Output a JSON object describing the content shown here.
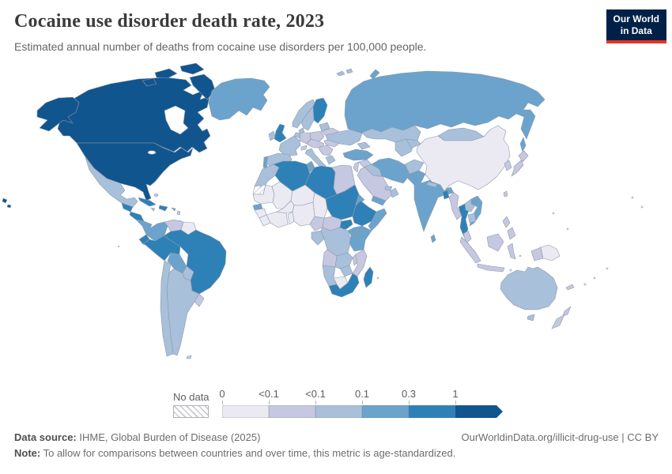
{
  "header": {
    "title": "Cocaine use disorder death rate, 2023",
    "subtitle": "Estimated annual number of deaths from cocaine use disorders per 100,000 people."
  },
  "logo": {
    "line1": "Our World",
    "line2": "in Data",
    "bg_color": "#002147",
    "accent_color": "#e63323"
  },
  "legend": {
    "no_data_label": "No data",
    "tick_labels": [
      "0",
      "<0.1",
      "<0.1",
      "0.1",
      "0.3",
      "1"
    ]
  },
  "map": {
    "ocean_color": "#ffffff",
    "border_color": "#8e99aa",
    "bin_colors": [
      "#ebeaf3",
      "#c6c7e1",
      "#a8c0da",
      "#6ba3cc",
      "#2e81b6",
      "#11558f"
    ],
    "no_data_pattern_line": "#bcbcca"
  },
  "footer": {
    "source_label": "Data source:",
    "source_text": " IHME, Global Burden of Disease (2025)",
    "note_label": "Note:",
    "note_text": " To allow for comparisons between countries and over time, this metric is age-standardized.",
    "attribution": "OurWorldinData.org/illicit-drug-use | CC BY"
  },
  "chart_data": {
    "type": "choropleth-map",
    "title": "Cocaine use disorder death rate, 2023",
    "unit": "deaths per 100,000 people (age-standardized)",
    "year": 2023,
    "legend_tick_labels": [
      "0",
      "<0.1",
      "<0.1",
      "0.1",
      "0.3",
      "1"
    ],
    "bin_colors": [
      "#ebeaf3",
      "#c6c7e1",
      "#a8c0da",
      "#6ba3cc",
      "#2e81b6",
      "#11558f"
    ],
    "no_data_countries": [
      "Western Sahara"
    ],
    "countries": {
      "United States": 5,
      "Canada": 5,
      "Hawaii": 5,
      "Greenland": 3,
      "Iceland": 4,
      "Mexico": 2,
      "Guatemala": 4,
      "Honduras-Nicaragua": 4,
      "Costa Rica-Panama": 3,
      "Cuba": 4,
      "Hispaniola": 4,
      "Jamaica": 2,
      "Puerto Rico": 3,
      "Bahamas": 1,
      "Lesser Antilles": 1,
      "Trinidad": 1,
      "Colombia": 3,
      "Venezuela": 1,
      "Guyana-Suriname": 0,
      "Brazil": 4,
      "Ecuador": 4,
      "Peru": 4,
      "Bolivia": 3,
      "Paraguay": 2,
      "Chile": 2,
      "Argentina": 2,
      "Uruguay": 1,
      "Falkland Islands": 1,
      "United Kingdom": 4,
      "Ireland": 2,
      "Norway": 2,
      "Sweden": 2,
      "Finland": 4,
      "Denmark": 2,
      "Baltic States": 2,
      "Belarus": 1,
      "Poland": 1,
      "Germany": 1,
      "Benelux": 2,
      "France": 2,
      "Switzerland": 1,
      "Czechia-Austria-Hungary": 1,
      "Italy": 2,
      "Spain": 2,
      "Portugal": 3,
      "Balkans": 1,
      "Romania": 1,
      "Greece": 2,
      "Ukraine": 2,
      "Svalbard": 2,
      "Russia": 3,
      "Kazakhstan": 2,
      "Uzbekistan-Turkmenistan": 2,
      "Kyrgyzstan-Tajikistan": 2,
      "Caucasus": 2,
      "Turkey": 3,
      "Syria": 1,
      "Iraq": 2,
      "Iran": 3,
      "Saudi Arabia": 1,
      "Israel-Jordan": 1,
      "Yemen": 3,
      "Oman": 2,
      "UAE-Qatar": 2,
      "Afghanistan": 2,
      "Pakistan": 3,
      "India": 3,
      "Nepal": 2,
      "Bangladesh": 4,
      "Sri Lanka": 3,
      "China": 0,
      "Mongolia": 2,
      "Korea": 1,
      "Japan": 1,
      "Taiwan": 1,
      "Myanmar": 1,
      "Thailand": 4,
      "Laos": 2,
      "Vietnam": 3,
      "Cambodia": 2,
      "Malaysia": 1,
      "Borneo": 1,
      "Sumatra": 1,
      "Java": 1,
      "Sulawesi": 1,
      "Philippines": 1,
      "Indonesian Papua": 1,
      "Papua New Guinea": 0,
      "Morocco": 2,
      "Western Sahara": "no_data",
      "Mauritania": 0,
      "Mali": 0,
      "Niger": 0,
      "Chad": 0,
      "Senegal": 3,
      "Guinea": 0,
      "Sierra Leone-Liberia": 0,
      "Cote d'Ivoire-Ghana": 0,
      "Burkina Faso": 0,
      "Togo-Benin": 0,
      "Nigeria": 0,
      "Cameroon": 1,
      "Central African Republic": 1,
      "Gabon-Congo": 2,
      "Democratic Republic of Congo": 2,
      "Uganda": 3,
      "Kenya": 3,
      "Tanzania": 3,
      "Sudan": 4,
      "South Sudan": 4,
      "Eritrea": 3,
      "Ethiopia": 4,
      "Somalia": 3,
      "Egypt": 1,
      "Algeria": 4,
      "Tunisia": 3,
      "Libya": 4,
      "Angola": 1,
      "Zambia": 2,
      "Malawi": 1,
      "Mozambique": 1,
      "Zimbabwe": 2,
      "Namibia": 2,
      "Botswana": 0,
      "South Africa": 4,
      "Madagascar": 4,
      "Australia": 2,
      "Tasmania": 2,
      "New Zealand": 1,
      "New Caledonia": 1
    }
  }
}
